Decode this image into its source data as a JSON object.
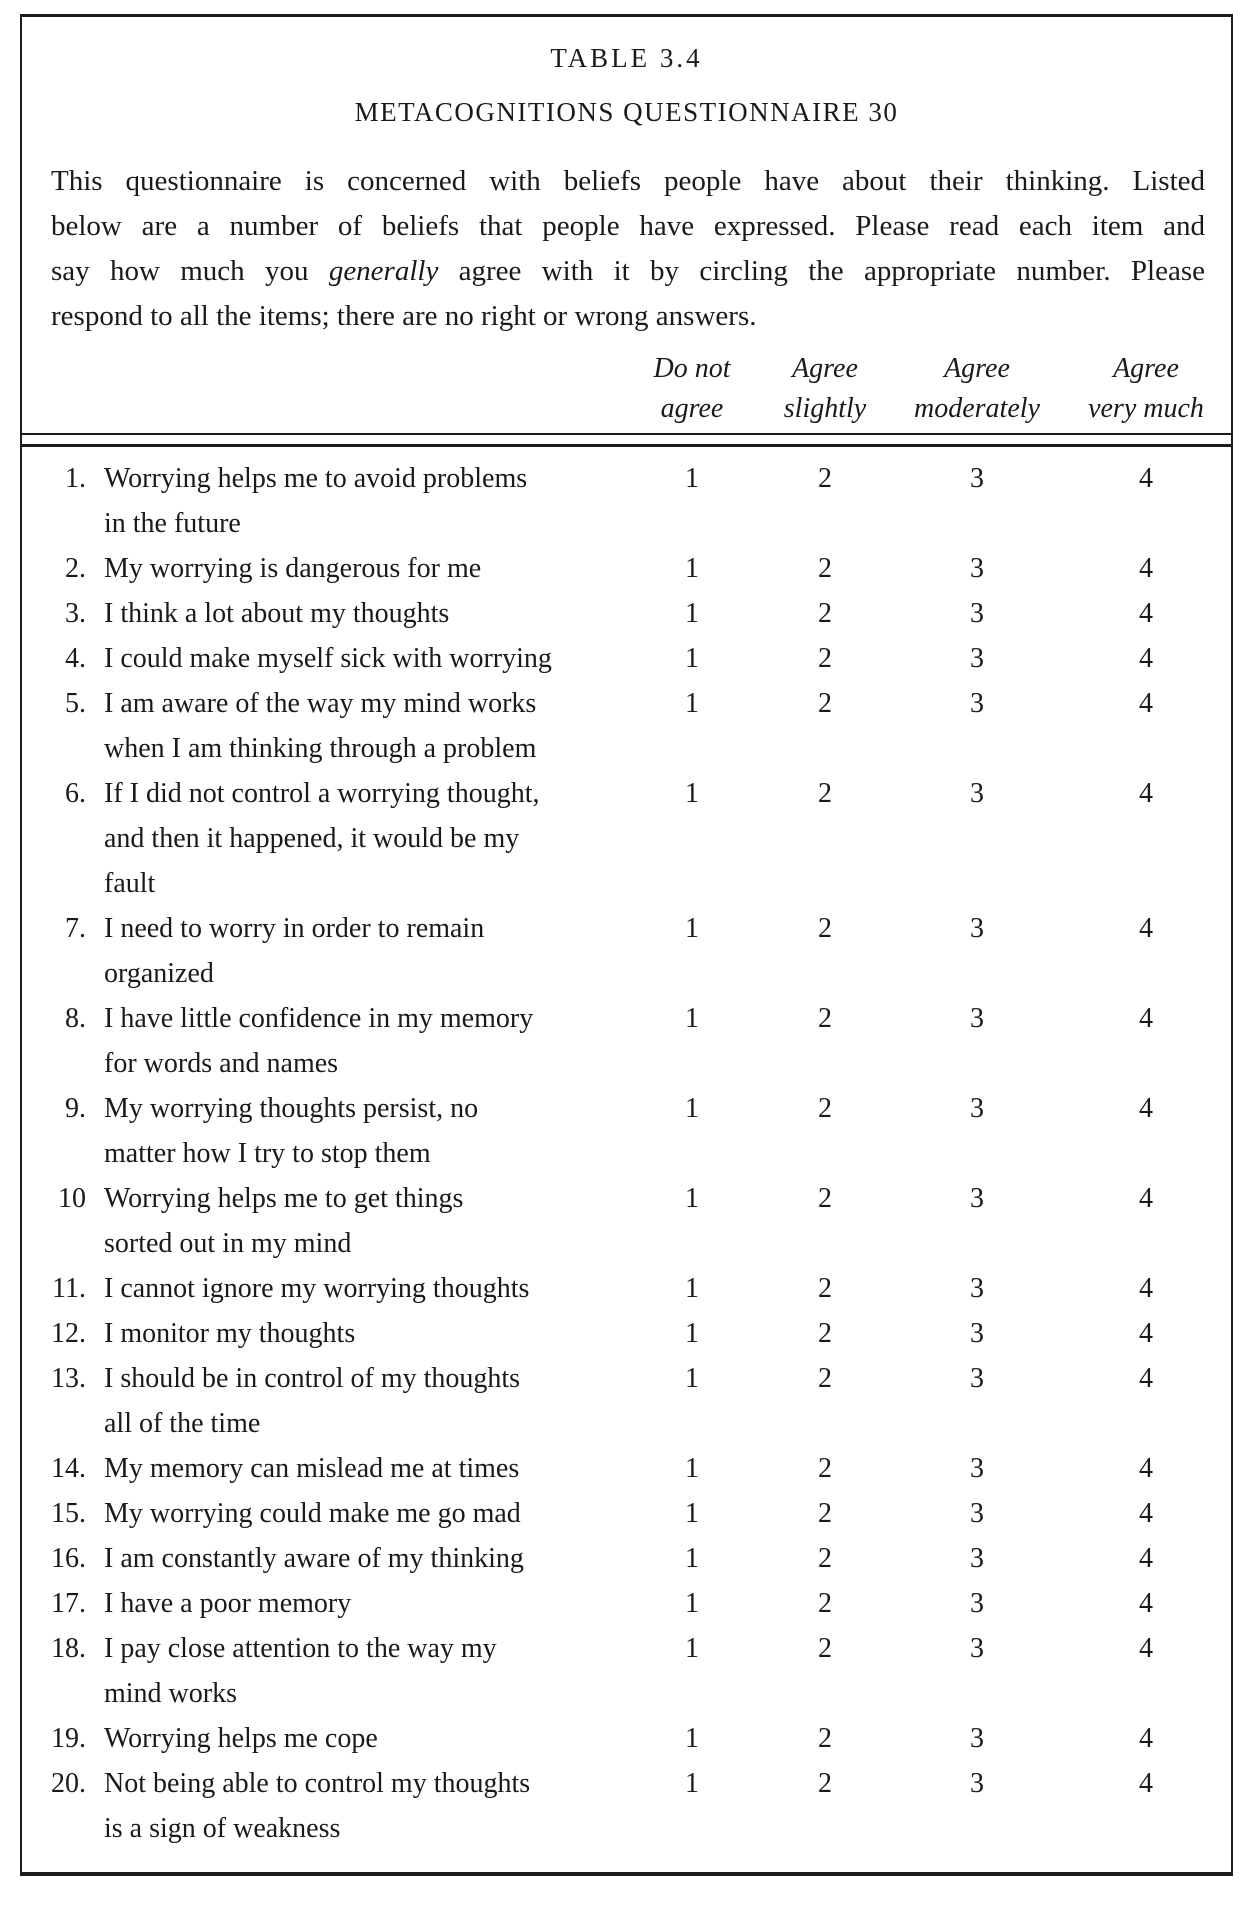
{
  "table": {
    "title": "TABLE 3.4",
    "subtitle": "METACOGNITIONS QUESTIONNAIRE 30",
    "intro": {
      "line1": "This questionnaire is concerned with beliefs people have about their thinking. Listed",
      "line2": "below are a number of beliefs that people have expressed. Please read each item and",
      "line3_before": "say how much you ",
      "line3_em": "generally",
      "line3_after": " agree with it by circling the appropriate number. Please",
      "line4": "respond to all the items; there are no right or wrong answers."
    },
    "columns": [
      "Do not\nagree",
      "Agree\nslightly",
      "Agree\nmoderately",
      "Agree\nvery much"
    ],
    "rating_scale": [
      "1",
      "2",
      "3",
      "4"
    ],
    "items": [
      {
        "num": "1.",
        "text": "Worrying helps me to avoid problems\nin the future"
      },
      {
        "num": "2.",
        "text": "My worrying is dangerous for me"
      },
      {
        "num": "3.",
        "text": "I think a lot about my thoughts"
      },
      {
        "num": "4.",
        "text": "I could make myself sick with worrying"
      },
      {
        "num": "5.",
        "text": "I am aware of the way my mind works\nwhen I am thinking through a problem"
      },
      {
        "num": "6.",
        "text": "If I did not control a worrying thought,\nand then it happened, it would be my\nfault"
      },
      {
        "num": "7.",
        "text": "I need to worry in order to remain\norganized"
      },
      {
        "num": "8.",
        "text": "I have little confidence in my memory\nfor words and names"
      },
      {
        "num": "9.",
        "text": "My worrying thoughts persist, no\nmatter how I try to stop them"
      },
      {
        "num": "10",
        "text": "Worrying helps me to get things\nsorted out in my mind"
      },
      {
        "num": "11.",
        "text": "I cannot ignore my worrying thoughts"
      },
      {
        "num": "12.",
        "text": "I monitor my thoughts"
      },
      {
        "num": "13.",
        "text": "I should be in control of my thoughts\nall of the time"
      },
      {
        "num": "14.",
        "text": "My memory can mislead me at times"
      },
      {
        "num": "15.",
        "text": "My worrying could make me go mad"
      },
      {
        "num": "16.",
        "text": "I am constantly aware of my thinking"
      },
      {
        "num": "17.",
        "text": "I have a poor memory"
      },
      {
        "num": "18.",
        "text": "I pay close attention to the way my\nmind works"
      },
      {
        "num": "19.",
        "text": "Worrying helps me cope"
      },
      {
        "num": "20.",
        "text": "Not being able to control my thoughts\nis a sign of weakness"
      }
    ]
  }
}
